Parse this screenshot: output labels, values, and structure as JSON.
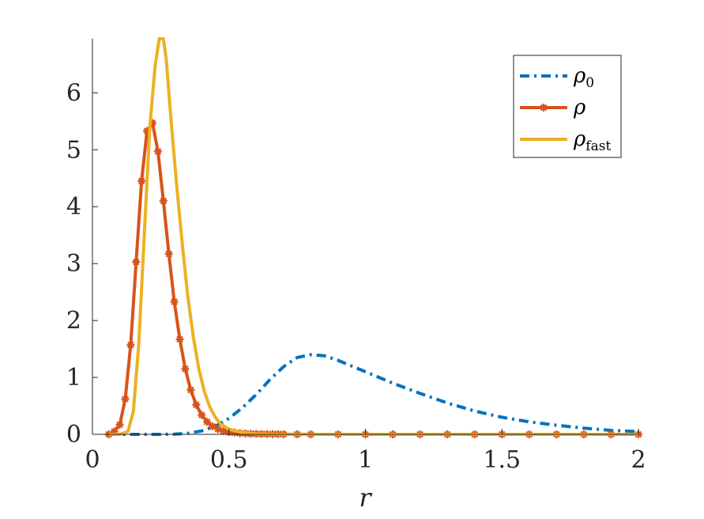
{
  "chart_data": {
    "type": "line",
    "title": "",
    "xlabel": "r",
    "ylabel": "",
    "xlim": [
      0,
      2
    ],
    "ylim": [
      0,
      6.95
    ],
    "xticks": [
      0,
      0.5,
      1,
      1.5,
      2
    ],
    "xtick_labels": [
      "0",
      "0.5",
      "1",
      "1.5",
      "2"
    ],
    "yticks": [
      0,
      1,
      2,
      3,
      4,
      5,
      6
    ],
    "ytick_labels": [
      "0",
      "1",
      "2",
      "3",
      "4",
      "5",
      "6"
    ],
    "grid": false,
    "legend_position": "top-right",
    "series": [
      {
        "name": "ρ0",
        "label_main": "ρ",
        "label_sub": "0",
        "color": "#0072BD",
        "style": "dash-dot",
        "x": [
          0.06,
          0.1,
          0.15,
          0.2,
          0.25,
          0.3,
          0.35,
          0.4,
          0.45,
          0.5,
          0.55,
          0.6,
          0.65,
          0.7,
          0.75,
          0.8,
          0.85,
          0.9,
          0.95,
          1.0,
          1.1,
          1.2,
          1.3,
          1.4,
          1.5,
          1.6,
          1.7,
          1.8,
          1.9,
          2.0
        ],
        "y": [
          0,
          0,
          0,
          0,
          0,
          0.003,
          0.02,
          0.06,
          0.14,
          0.28,
          0.47,
          0.7,
          0.96,
          1.19,
          1.35,
          1.4,
          1.38,
          1.3,
          1.2,
          1.1,
          0.9,
          0.72,
          0.55,
          0.41,
          0.3,
          0.22,
          0.16,
          0.11,
          0.07,
          0.05
        ]
      },
      {
        "name": "ρ",
        "label_main": "ρ",
        "label_sub": "",
        "color": "#D95319",
        "style": "solid-star",
        "x": [
          0.06,
          0.08,
          0.1,
          0.12,
          0.14,
          0.16,
          0.18,
          0.2,
          0.22,
          0.24,
          0.26,
          0.28,
          0.3,
          0.32,
          0.34,
          0.36,
          0.38,
          0.4,
          0.42,
          0.44,
          0.46,
          0.48,
          0.5,
          0.52,
          0.54,
          0.56,
          0.58,
          0.6,
          0.62,
          0.64,
          0.66,
          0.68,
          0.7,
          0.75,
          0.8,
          0.9,
          1.0,
          1.1,
          1.2,
          1.3,
          1.4,
          1.5,
          1.6,
          1.7,
          1.8,
          1.9,
          2.0
        ],
        "y": [
          0,
          0.05,
          0.17,
          0.62,
          1.57,
          3.03,
          4.45,
          5.33,
          5.47,
          4.97,
          4.1,
          3.17,
          2.33,
          1.67,
          1.15,
          0.78,
          0.52,
          0.34,
          0.22,
          0.14,
          0.09,
          0.06,
          0.04,
          0.03,
          0.02,
          0.015,
          0.01,
          0.008,
          0.006,
          0.005,
          0.004,
          0.003,
          0.002,
          0.001,
          0,
          0,
          0,
          0,
          0,
          0,
          0,
          0,
          0,
          0,
          0,
          0,
          0
        ]
      },
      {
        "name": "ρfast",
        "label_main": "ρ",
        "label_sub": "fast",
        "color": "#EDB120",
        "style": "solid",
        "x": [
          0.06,
          0.1,
          0.13,
          0.15,
          0.17,
          0.19,
          0.21,
          0.23,
          0.245,
          0.26,
          0.27,
          0.29,
          0.31,
          0.33,
          0.35,
          0.37,
          0.39,
          0.41,
          0.43,
          0.45,
          0.47,
          0.5,
          0.55,
          0.6,
          0.7,
          0.8,
          1.0,
          1.5,
          2.0
        ],
        "y": [
          0,
          0,
          0.05,
          0.4,
          1.6,
          3.5,
          5.4,
          6.5,
          6.95,
          6.95,
          6.6,
          5.4,
          4.3,
          3.3,
          2.4,
          1.7,
          1.15,
          0.75,
          0.48,
          0.3,
          0.18,
          0.09,
          0.03,
          0.01,
          0,
          0,
          0,
          0,
          0
        ]
      }
    ]
  }
}
